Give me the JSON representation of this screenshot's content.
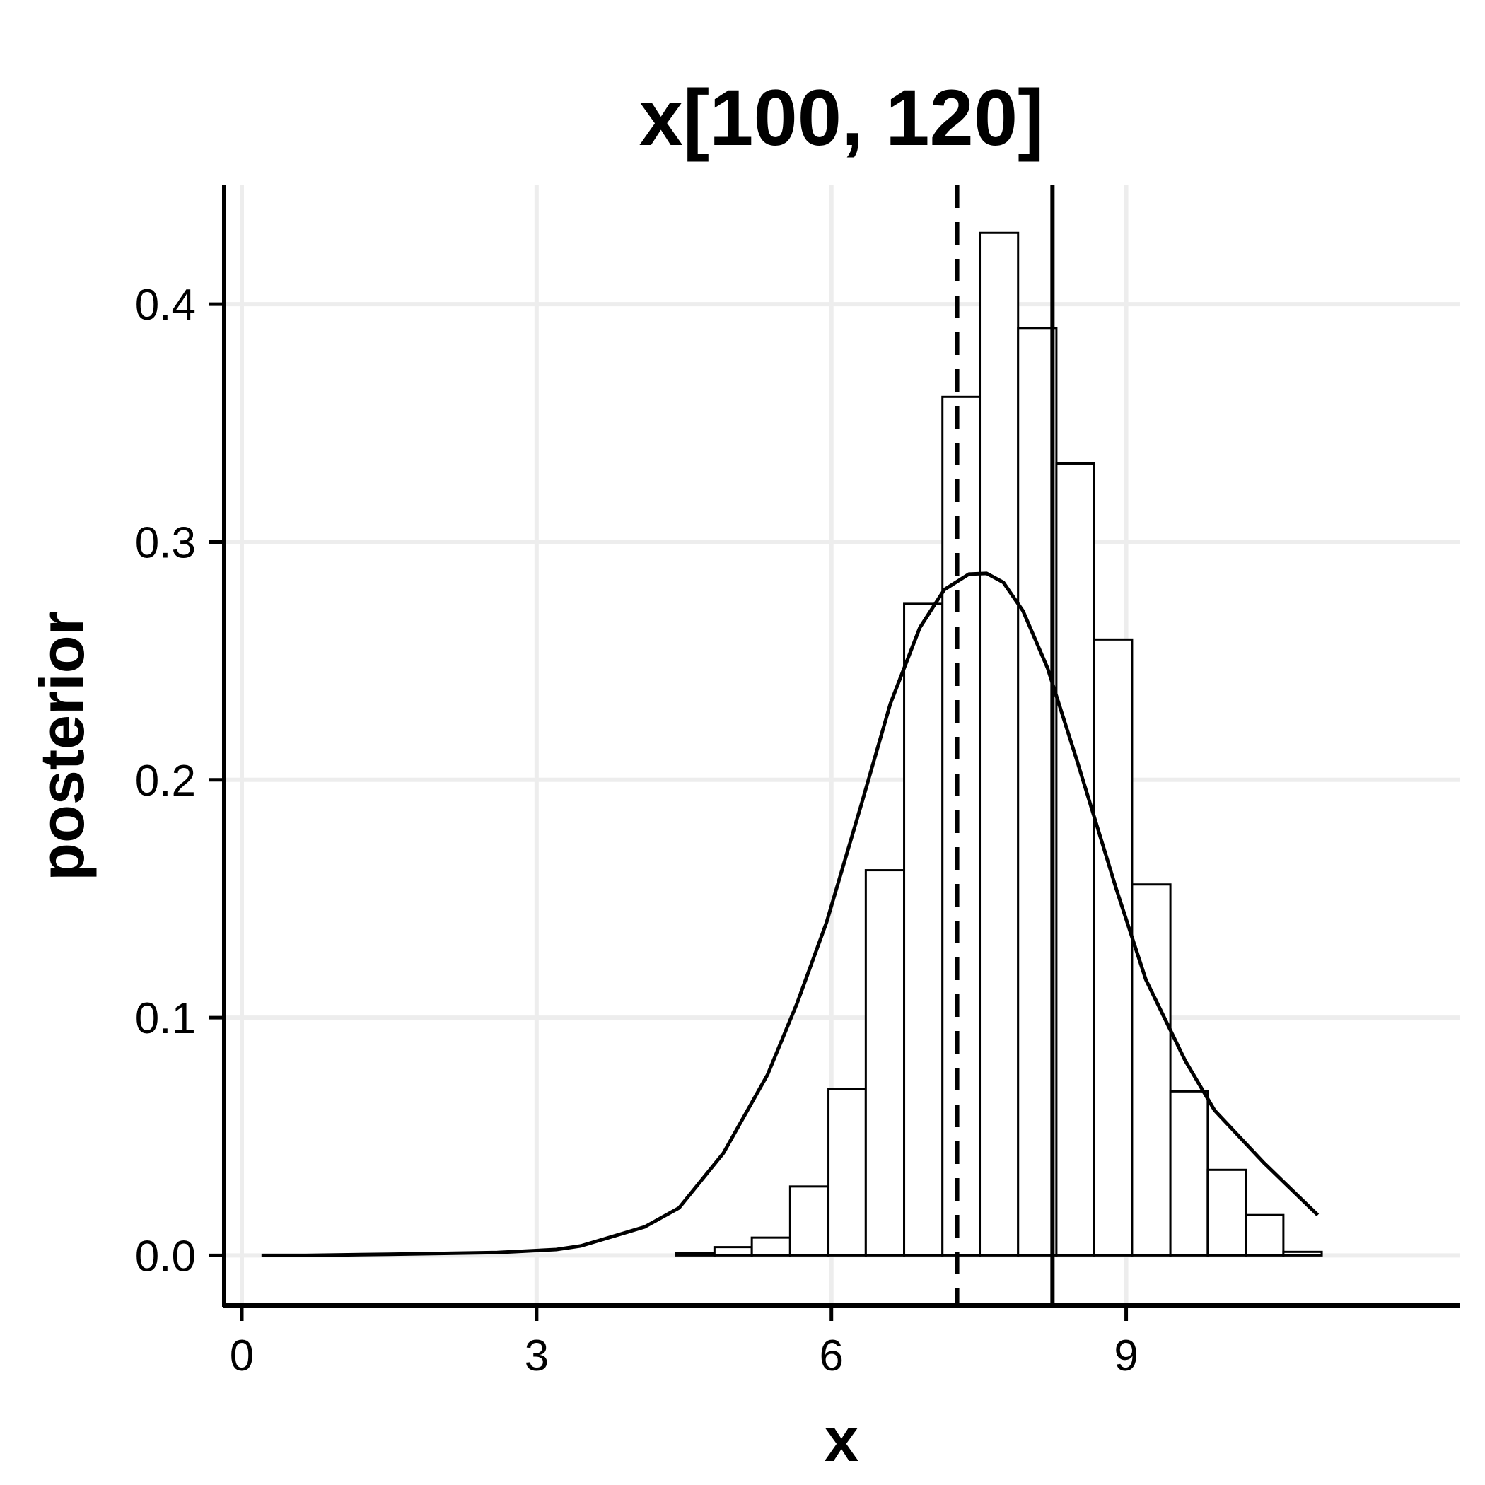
{
  "chart_data": {
    "type": "bar",
    "title": "x[100, 120]",
    "xlabel": "x",
    "ylabel": "posterior",
    "xlim": [
      -0.18,
      12.4
    ],
    "ylim": [
      -0.021,
      0.45
    ],
    "x_ticks": [
      0,
      3,
      6,
      9
    ],
    "x_tick_labels": [
      "0",
      "3",
      "6",
      "9"
    ],
    "y_ticks": [
      0.0,
      0.1,
      0.2,
      0.3,
      0.4
    ],
    "y_tick_labels": [
      "0.0",
      "0.1",
      "0.2",
      "0.3",
      "0.4"
    ],
    "grid": true,
    "histogram": {
      "bins": [
        {
          "x0": 4.42,
          "x1": 4.81,
          "value": 0.001
        },
        {
          "x0": 4.81,
          "x1": 5.19,
          "value": 0.0035
        },
        {
          "x0": 5.19,
          "x1": 5.58,
          "value": 0.0075
        },
        {
          "x0": 5.58,
          "x1": 5.97,
          "value": 0.029
        },
        {
          "x0": 5.97,
          "x1": 6.35,
          "value": 0.07
        },
        {
          "x0": 6.35,
          "x1": 6.74,
          "value": 0.162
        },
        {
          "x0": 6.74,
          "x1": 7.13,
          "value": 0.274
        },
        {
          "x0": 7.13,
          "x1": 7.51,
          "value": 0.361
        },
        {
          "x0": 7.51,
          "x1": 7.9,
          "value": 0.43
        },
        {
          "x0": 7.9,
          "x1": 8.29,
          "value": 0.39
        },
        {
          "x0": 8.29,
          "x1": 8.67,
          "value": 0.333
        },
        {
          "x0": 8.67,
          "x1": 9.06,
          "value": 0.259
        },
        {
          "x0": 9.06,
          "x1": 9.45,
          "value": 0.156
        },
        {
          "x0": 9.45,
          "x1": 9.83,
          "value": 0.069
        },
        {
          "x0": 9.83,
          "x1": 10.22,
          "value": 0.036
        },
        {
          "x0": 10.22,
          "x1": 10.6,
          "value": 0.017
        },
        {
          "x0": 10.6,
          "x1": 10.99,
          "value": 0.0015
        }
      ]
    },
    "curve": {
      "x": [
        0.2,
        0.65,
        1.5,
        2.6,
        3.2,
        3.45,
        4.1,
        4.45,
        4.9,
        5.35,
        5.65,
        5.95,
        6.3,
        6.6,
        6.9,
        7.15,
        7.4,
        7.58,
        7.75,
        7.95,
        8.2,
        8.5,
        8.9,
        9.2,
        9.6,
        9.9,
        10.4,
        10.95
      ],
      "y": [
        0.0,
        0.0,
        0.0005,
        0.0012,
        0.0025,
        0.004,
        0.012,
        0.02,
        0.043,
        0.076,
        0.106,
        0.14,
        0.189,
        0.232,
        0.264,
        0.28,
        0.2865,
        0.2868,
        0.283,
        0.271,
        0.247,
        0.208,
        0.154,
        0.116,
        0.082,
        0.061,
        0.039,
        0.017
      ]
    },
    "vlines": [
      {
        "x": 7.28,
        "style": "dashed"
      },
      {
        "x": 8.25,
        "style": "solid"
      }
    ],
    "colors": {
      "bar_fill": "#ffffff",
      "bar_stroke": "#000000",
      "line": "#000000",
      "grid": "#ededed",
      "axis": "#000000"
    }
  }
}
